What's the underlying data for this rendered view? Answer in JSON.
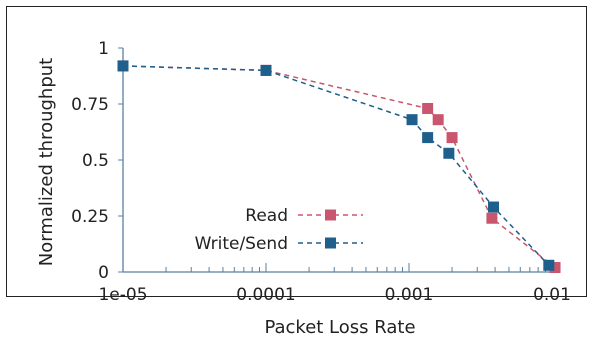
{
  "chart_data": {
    "type": "line",
    "title": "",
    "xlabel": "Packet Loss Rate",
    "ylabel": "Normalized throughput",
    "xscale": "log",
    "xlim": [
      1e-05,
      0.01
    ],
    "ylim": [
      0,
      1
    ],
    "x_ticks": [
      1e-05,
      0.0001,
      0.001,
      0.01
    ],
    "x_tick_labels": [
      "1e-05",
      "0.0001",
      "0.001",
      "0.01"
    ],
    "y_ticks": [
      0,
      0.25,
      0.5,
      0.75,
      1
    ],
    "y_tick_labels": [
      "0",
      "0.25",
      "0.5",
      "0.75",
      "1"
    ],
    "grid": false,
    "legend_position": "bottom-left",
    "series": [
      {
        "name": "Read",
        "color": "#c9566e",
        "marker": "square",
        "line_style": "dashed",
        "points": [
          {
            "x": 1e-05,
            "y": 0.92
          },
          {
            "x": 0.0001,
            "y": 0.9
          },
          {
            "x": 0.00135,
            "y": 0.73
          },
          {
            "x": 0.0016,
            "y": 0.68
          },
          {
            "x": 0.002,
            "y": 0.6
          },
          {
            "x": 0.0038,
            "y": 0.24
          },
          {
            "x": 0.0105,
            "y": 0.02
          }
        ]
      },
      {
        "name": "Write/Send",
        "color": "#1f5f8b",
        "marker": "square",
        "line_style": "dashed",
        "points": [
          {
            "x": 1e-05,
            "y": 0.92
          },
          {
            "x": 0.0001,
            "y": 0.9
          },
          {
            "x": 0.00105,
            "y": 0.68
          },
          {
            "x": 0.00135,
            "y": 0.6
          },
          {
            "x": 0.0019,
            "y": 0.53
          },
          {
            "x": 0.0039,
            "y": 0.29
          },
          {
            "x": 0.0095,
            "y": 0.03
          }
        ]
      }
    ]
  }
}
